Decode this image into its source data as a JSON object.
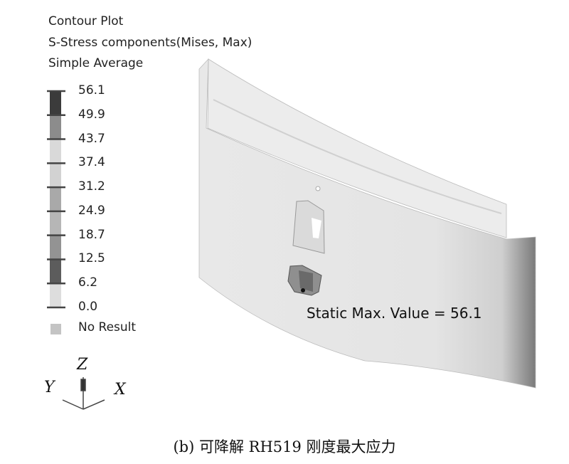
{
  "legend": {
    "title": "Contour Plot",
    "subtitle": "S-Stress components(Mises, Max)",
    "averaging": "Simple Average",
    "values": [
      "56.1",
      "49.9",
      "43.7",
      "37.4",
      "31.2",
      "24.9",
      "18.7",
      "12.5",
      "6.2",
      "0.0"
    ],
    "band_colors": [
      "#3b3b3b",
      "#8c8c8c",
      "#d9d9d9",
      "#d2d2d2",
      "#a9a9a9",
      "#b6b6b6",
      "#939393",
      "#5c5c5c",
      "#dddddd"
    ],
    "no_result_label": "No Result",
    "no_result_color": "#c4c4c4"
  },
  "annotation": {
    "max_label": "Static Max. Value =  56.1"
  },
  "axes": {
    "z": "Z",
    "y": "Y",
    "x": "X"
  },
  "caption": "(b) 可降解 RH519 刚度最大应力"
}
